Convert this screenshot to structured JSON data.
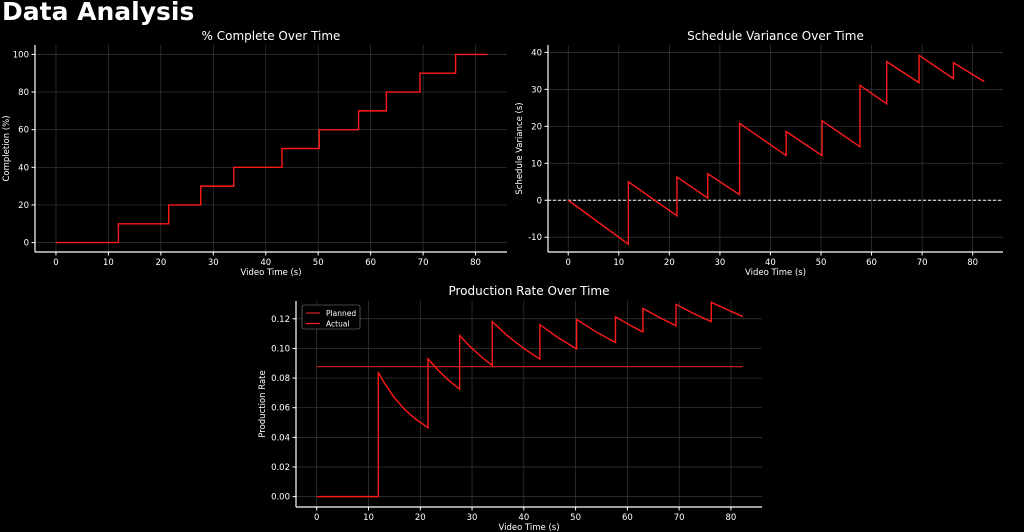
{
  "page": {
    "title": "Data Analysis"
  },
  "colors": {
    "background": "#000000",
    "line": "#ff1a1a",
    "planned": "#d42020",
    "grid": "#3a3a3a",
    "axis": "#ffffff",
    "zero_line": "#ffffff"
  },
  "chart_data": [
    {
      "type": "line",
      "title": "% Complete Over Time",
      "xlabel": "Video Time (s)",
      "ylabel": "Completion (%)",
      "xlim": [
        -4,
        86
      ],
      "ylim": [
        -5,
        105
      ],
      "xticks": [
        0,
        10,
        20,
        30,
        40,
        50,
        60,
        70,
        80
      ],
      "yticks": [
        0,
        20,
        40,
        60,
        80,
        100
      ],
      "grid": true,
      "step": true,
      "series": [
        {
          "x": [
            0,
            11.9,
            21.5,
            27.6,
            33.9,
            43.1,
            50.2,
            57.7,
            63.0,
            69.4,
            76.2,
            82.3
          ],
          "y": [
            0,
            10,
            20,
            30,
            40,
            50,
            60,
            70,
            80,
            90,
            100,
            100
          ]
        }
      ]
    },
    {
      "type": "line",
      "title": "Schedule Variance Over Time",
      "xlabel": "Video Time (s)",
      "ylabel": "Schedule Variance (s)",
      "xlim": [
        -4,
        86
      ],
      "ylim": [
        -14,
        42
      ],
      "xticks": [
        0,
        10,
        20,
        30,
        40,
        50,
        60,
        70,
        80
      ],
      "yticks": [
        -10,
        0,
        10,
        20,
        30,
        40
      ],
      "grid": true,
      "reference_line": {
        "y": 0,
        "style": "dashed"
      },
      "series": [
        {
          "x": [
            0,
            11.9,
            11.9,
            21.5,
            21.5,
            27.6,
            27.6,
            33.9,
            33.9,
            43.1,
            43.1,
            50.2,
            50.2,
            57.7,
            57.7,
            63.0,
            63.0,
            69.4,
            69.4,
            76.2,
            76.2,
            82.3
          ],
          "y": [
            0,
            -11.9,
            5.0,
            -4.2,
            6.3,
            0.6,
            7.2,
            1.5,
            20.8,
            12.1,
            18.6,
            12.1,
            21.5,
            14.5,
            31.1,
            26.1,
            37.5,
            31.8,
            39.2,
            32.9,
            37.2,
            32.1
          ]
        }
      ]
    },
    {
      "type": "line",
      "title": "Production Rate Over Time",
      "xlabel": "Video Time (s)",
      "ylabel": "Production Rate",
      "xlim": [
        -4,
        86
      ],
      "ylim": [
        -0.007,
        0.132
      ],
      "xticks": [
        0,
        10,
        20,
        30,
        40,
        50,
        60,
        70,
        80
      ],
      "yticks": [
        0.0,
        0.02,
        0.04,
        0.06,
        0.08,
        0.1,
        0.12
      ],
      "ytick_labels": [
        "0.00",
        "0.02",
        "0.04",
        "0.06",
        "0.08",
        "0.10",
        "0.12"
      ],
      "grid": true,
      "legend": {
        "placement": "top-left"
      },
      "series": [
        {
          "name": "Planned",
          "x": [
            0,
            82.3
          ],
          "y": [
            0.0877,
            0.0877
          ]
        },
        {
          "name": "Actual",
          "x": [
            0,
            11.9,
            11.9,
            13,
            15,
            17,
            19,
            21.5,
            21.5,
            23.5,
            25.5,
            27.6,
            27.6,
            29.7,
            31.8,
            33.9,
            33.9,
            37,
            40,
            43.1,
            43.1,
            46.6,
            50.2,
            50.2,
            53.9,
            57.7,
            57.7,
            60.3,
            63.0,
            63.0,
            66.2,
            69.4,
            69.4,
            72.8,
            76.2,
            76.2,
            79.2,
            82.3
          ],
          "y": [
            0,
            0,
            0.084,
            0.077,
            0.0667,
            0.0588,
            0.0526,
            0.0465,
            0.093,
            0.0851,
            0.0784,
            0.0725,
            0.1087,
            0.101,
            0.0943,
            0.0885,
            0.118,
            0.1081,
            0.1,
            0.0928,
            0.116,
            0.1073,
            0.0996,
            0.1195,
            0.1113,
            0.104,
            0.1213,
            0.1161,
            0.1111,
            0.127,
            0.1209,
            0.1153,
            0.1297,
            0.1236,
            0.1181,
            0.1312,
            0.1263,
            0.1215
          ]
        }
      ]
    }
  ]
}
